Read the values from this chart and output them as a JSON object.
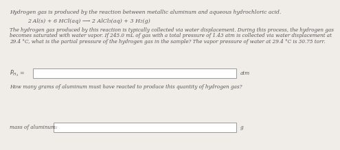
{
  "title_line": "Hydrogen gas is produced by the reaction between metallic aluminum and aqueous hydrochloric acid.",
  "equation": "2 Al(s) + 6 HCl(aq) ⟶ 2 AlCl₃(aq) + 3 H₂(g)",
  "paragraph_lines": [
    "The hydrogen gas produced by this reaction is typically collected via water displacement. During this process, the hydrogen gas",
    "becomes saturated with water vapor. If 245.0 mL of gas with a total pressure of 1.43 atm is collected via water displacement at",
    "29.4 °C, what is the partial pressure of the hydrogen gas in the sample? The vapor pressure of water at 29.4 °C is 30.75 torr."
  ],
  "label1": "$P_{H_2}$ =",
  "unit1": "atm",
  "label2": "How many grams of aluminum must have reacted to produce this quantity of hydrogen gas?",
  "label3": "mass of aluminum:",
  "unit2": "g",
  "bg_color": "#f0ede8",
  "box_color": "#ffffff",
  "box_edge": "#999999",
  "text_color": "#555555"
}
